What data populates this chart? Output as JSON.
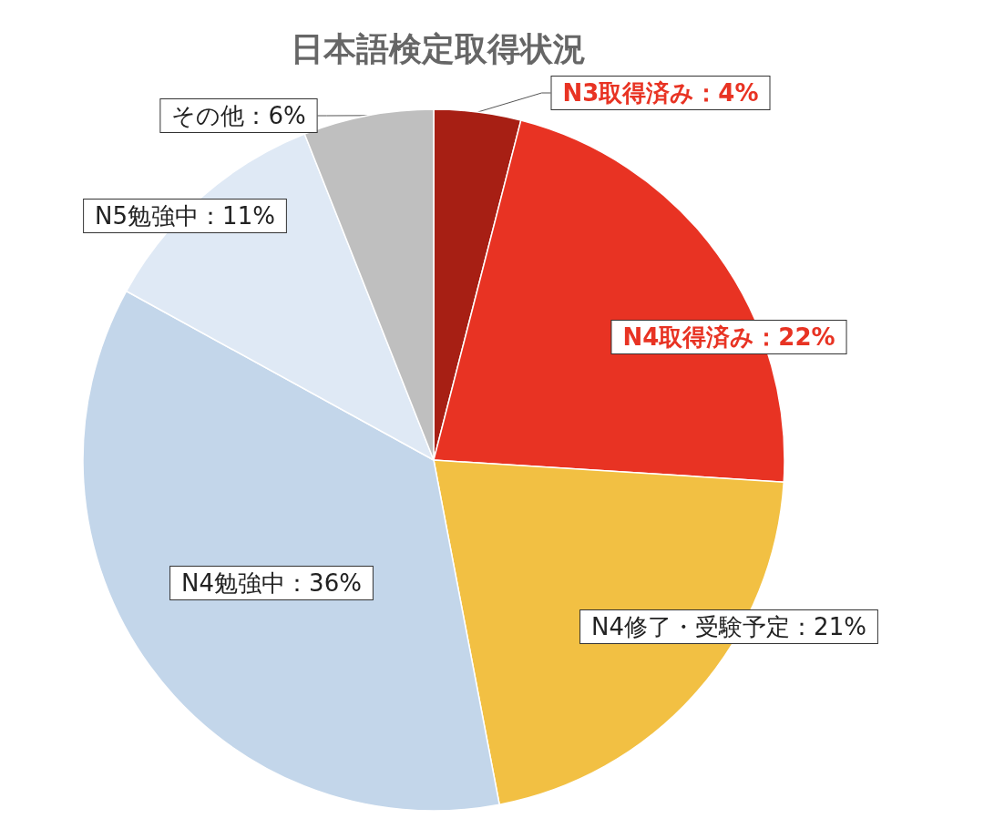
{
  "chart_data": {
    "type": "pie",
    "title": "日本語検定取得状況",
    "categories": [
      "N3取得済み",
      "N4取得済み",
      "N4修了・受験予定",
      "N4勉強中",
      "N5勉強中",
      "その他"
    ],
    "values": [
      4,
      22,
      21,
      36,
      11,
      6
    ],
    "value_labels": [
      "：4%",
      "：22%",
      "：21%",
      "：36%",
      "：11%",
      "：6%"
    ],
    "colors": [
      "#a71f14",
      "#e83323",
      "#f2c043",
      "#c3d6ea",
      "#dfe9f5",
      "#bfbfbf"
    ]
  }
}
